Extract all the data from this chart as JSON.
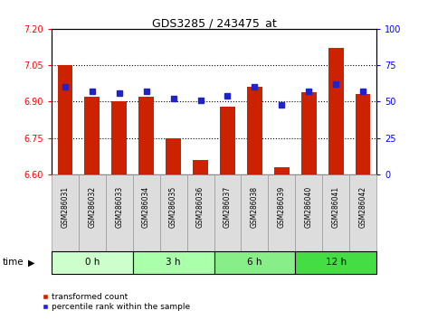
{
  "title": "GDS3285 / 243475_at",
  "samples": [
    "GSM286031",
    "GSM286032",
    "GSM286033",
    "GSM286034",
    "GSM286035",
    "GSM286036",
    "GSM286037",
    "GSM286038",
    "GSM286039",
    "GSM286040",
    "GSM286041",
    "GSM286042"
  ],
  "bar_values": [
    7.05,
    6.92,
    6.9,
    6.92,
    6.75,
    6.66,
    6.88,
    6.96,
    6.63,
    6.94,
    7.12,
    6.93
  ],
  "percentile_values": [
    60,
    57,
    56,
    57,
    52,
    51,
    54,
    60,
    48,
    57,
    62,
    57
  ],
  "groups": [
    {
      "label": "0 h",
      "indices": [
        0,
        1,
        2
      ],
      "color": "#ccffcc"
    },
    {
      "label": "3 h",
      "indices": [
        3,
        4,
        5
      ],
      "color": "#aaffaa"
    },
    {
      "label": "6 h",
      "indices": [
        6,
        7,
        8
      ],
      "color": "#88ee88"
    },
    {
      "label": "12 h",
      "indices": [
        9,
        10,
        11
      ],
      "color": "#44dd44"
    }
  ],
  "bar_color": "#cc2200",
  "percentile_color": "#2222cc",
  "ylim_left": [
    6.6,
    7.2
  ],
  "ylim_right": [
    0,
    100
  ],
  "yticks_left": [
    6.6,
    6.75,
    6.9,
    7.05,
    7.2
  ],
  "yticks_right": [
    0,
    25,
    50,
    75,
    100
  ],
  "hlines": [
    7.05,
    6.9,
    6.75
  ],
  "background_color": "#ffffff",
  "time_label": "time",
  "sample_box_color": "#dddddd",
  "sample_box_edge": "#999999"
}
